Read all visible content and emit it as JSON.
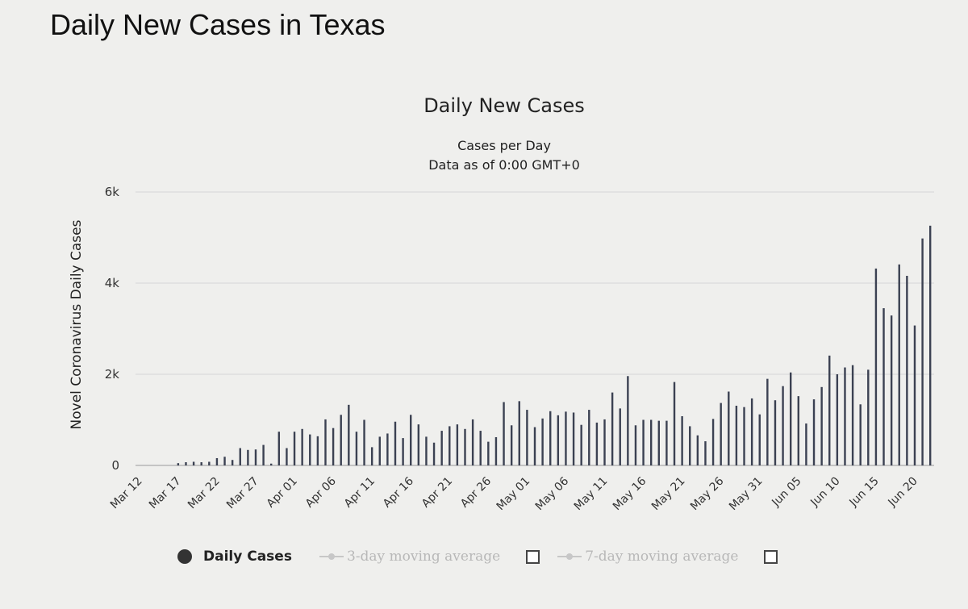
{
  "page": {
    "title": "Daily New Cases in Texas"
  },
  "chart_data": {
    "type": "bar",
    "title": "Daily New Cases",
    "subtitle_lines": [
      "Cases per Day",
      "Data as of 0:00 GMT+0"
    ],
    "ylabel": "Novel Coronavirus Daily Cases",
    "xlabel": "",
    "ylim": [
      0,
      6000
    ],
    "yticks": [
      0,
      2000,
      4000,
      6000
    ],
    "ytick_labels": [
      "0",
      "2k",
      "4k",
      "6k"
    ],
    "grid": true,
    "legend_position": "bottom",
    "x_tick_labels": [
      "Mar 12",
      "Mar 17",
      "Mar 22",
      "Mar 27",
      "Apr 01",
      "Apr 06",
      "Apr 11",
      "Apr 16",
      "Apr 21",
      "Apr 26",
      "May 01",
      "May 06",
      "May 11",
      "May 16",
      "May 21",
      "May 26",
      "May 31",
      "Jun 05",
      "Jun 10",
      "Jun 15",
      "Jun 20"
    ],
    "bar_color": "#3b4152",
    "series": [
      {
        "name": "Daily Cases",
        "values": [
          0,
          0,
          0,
          0,
          0,
          50,
          70,
          80,
          70,
          80,
          160,
          190,
          120,
          380,
          340,
          350,
          450,
          40,
          740,
          380,
          740,
          800,
          680,
          640,
          1010,
          820,
          1110,
          1330,
          740,
          1000,
          400,
          630,
          700,
          960,
          600,
          1110,
          900,
          630,
          500,
          760,
          860,
          900,
          800,
          1010,
          760,
          520,
          620,
          1390,
          880,
          1410,
          1220,
          840,
          1030,
          1190,
          1100,
          1180,
          1160,
          890,
          1220,
          940,
          1010,
          1600,
          1250,
          1960,
          880,
          1000,
          1000,
          980,
          980,
          1830,
          1080,
          860,
          660,
          530,
          1020,
          1370,
          1620,
          1310,
          1280,
          1470,
          1120,
          1900,
          1430,
          1740,
          2040,
          1520,
          920,
          1450,
          1720,
          2410,
          2000,
          2150,
          2200,
          1340,
          2100,
          4320,
          3450,
          3290,
          4410,
          4160,
          3070,
          4980,
          5260
        ]
      }
    ],
    "legend": [
      {
        "label": "Daily Cases",
        "active": true
      },
      {
        "label": "3-day moving average",
        "active": false
      },
      {
        "label": "7-day moving average",
        "active": false
      }
    ]
  }
}
